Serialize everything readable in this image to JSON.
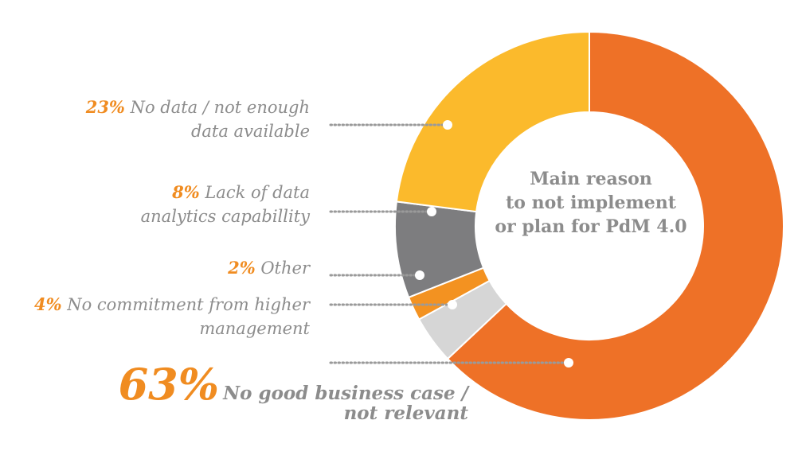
{
  "chart_data": {
    "type": "pie",
    "style": "donut",
    "center_label": "Main reason to not implement or plan for PdM 4.0",
    "slices": [
      {
        "label": "No good business case / not relevant",
        "percent_label": "63%",
        "value": 63,
        "color": "#ee7127"
      },
      {
        "label": "No commitment from higher management",
        "percent_label": "4%",
        "value": 4,
        "color": "#d6d6d6"
      },
      {
        "label": "Other",
        "percent_label": "2%",
        "value": 2,
        "color": "#f39221"
      },
      {
        "label": "Lack of data analytics capabillity",
        "percent_label": "8%",
        "value": 8,
        "color": "#7d7d7f"
      },
      {
        "label": "No data / not enough data available",
        "percent_label": "23%",
        "value": 23,
        "color": "#fbba2c"
      }
    ]
  },
  "text": {
    "center_line1": "Main reason",
    "center_line2": "to not implement",
    "center_line3": "or plan for PdM 4.0",
    "l1_pct": "23%",
    "l1_a": "No data / not enough",
    "l1_b": "data available",
    "l2_pct": "8%",
    "l2_a": "Lack of data",
    "l2_b": "analytics capabillity",
    "l3_pct": "2%",
    "l3_a": "Other",
    "l4_pct": "4%",
    "l4_a": "No commitment from higher",
    "l4_b": "management",
    "l5_pct": "63%",
    "l5_a": "No good business case /",
    "l5_b": "not relevant"
  }
}
